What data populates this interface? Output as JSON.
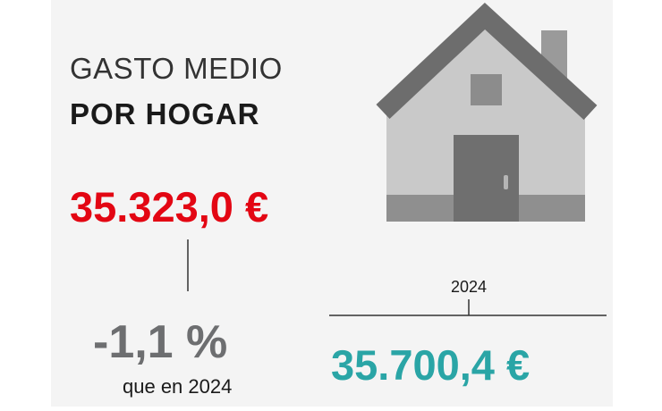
{
  "header": {
    "title_line1": "GASTO MEDIO",
    "title_line2": "POR HOGAR"
  },
  "current": {
    "value": "35.323,0 €",
    "change": "-1,1 %",
    "change_label": "que en 2024"
  },
  "comparison": {
    "year": "2024",
    "value": "35.700,4 €"
  }
}
